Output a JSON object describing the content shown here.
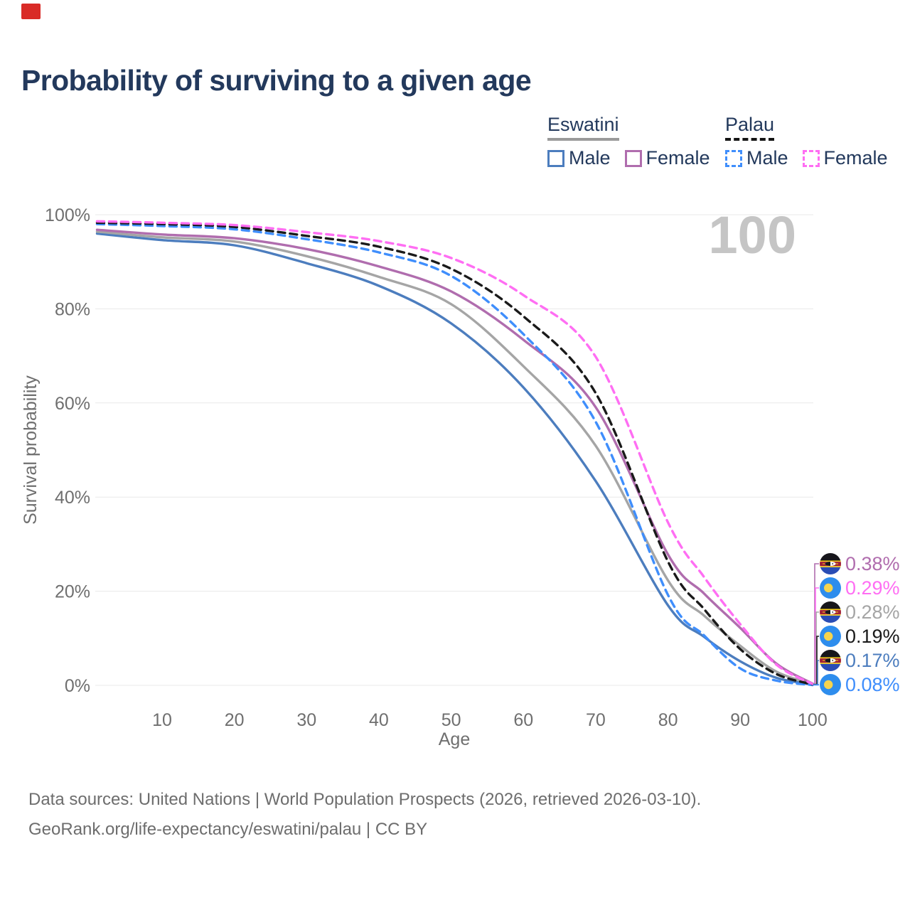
{
  "header": {
    "title": "Probability of surviving to a given age"
  },
  "watermark_age": "100",
  "legend": {
    "groups": [
      {
        "label": "Eswatini",
        "line_style": "solid",
        "underline_color": "#9a9a9a",
        "items": [
          {
            "label": "Male",
            "color": "#4c7dbe"
          },
          {
            "label": "Female",
            "color": "#b06dae"
          }
        ]
      },
      {
        "label": "Palau",
        "line_style": "dashed",
        "underline_color": "#141414",
        "items": [
          {
            "label": "Male",
            "color": "#3f8efc"
          },
          {
            "label": "Female",
            "color": "#ff6ef3"
          }
        ]
      }
    ]
  },
  "chart_data": {
    "type": "line",
    "title": "Probability of surviving to a given age",
    "xlabel": "Age",
    "ylabel": "Survival probability",
    "xlim": [
      1,
      100
    ],
    "ylim": [
      0,
      100
    ],
    "grid": "horizontal",
    "legend_position": "top-right",
    "x_ticks": [
      {
        "value": 10,
        "label": "10"
      },
      {
        "value": 20,
        "label": "20"
      },
      {
        "value": 30,
        "label": "30"
      },
      {
        "value": 40,
        "label": "40"
      },
      {
        "value": 50,
        "label": "50"
      },
      {
        "value": 60,
        "label": "60"
      },
      {
        "value": 70,
        "label": "70"
      },
      {
        "value": 80,
        "label": "80"
      },
      {
        "value": 90,
        "label": "90"
      },
      {
        "value": 100,
        "label": "100"
      }
    ],
    "y_ticks": [
      {
        "value": 0,
        "label": "0%"
      },
      {
        "value": 20,
        "label": "20%"
      },
      {
        "value": 40,
        "label": "40%"
      },
      {
        "value": 60,
        "label": "60%"
      },
      {
        "value": 80,
        "label": "80%"
      },
      {
        "value": 100,
        "label": "100%"
      }
    ],
    "x": [
      1,
      10,
      20,
      30,
      40,
      50,
      60,
      70,
      80,
      85,
      90,
      95,
      100
    ],
    "series": [
      {
        "id": "eswatini-female",
        "name": "Eswatini Female",
        "country": "Eswatini",
        "sex": "Female",
        "color": "#b06dae",
        "dash": "solid",
        "flag": "eswatini",
        "end_label": "0.38%",
        "values": [
          96.8,
          95.8,
          95.0,
          92.7,
          89.0,
          83.7,
          73.4,
          59.1,
          27.8,
          19.5,
          12.2,
          4.6,
          0.38
        ]
      },
      {
        "id": "palau-female",
        "name": "Palau Female",
        "country": "Palau",
        "sex": "Female",
        "color": "#ff6ef3",
        "dash": "dashed",
        "flag": "palau",
        "end_label": "0.29%",
        "values": [
          98.6,
          98.3,
          97.8,
          96.3,
          94.4,
          90.8,
          82.9,
          69.8,
          34.6,
          23.0,
          13.0,
          4.4,
          0.29
        ]
      },
      {
        "id": "eswatini-both",
        "name": "Eswatini Both sexes",
        "country": "Eswatini",
        "sex": "Both",
        "color": "#a5a5a5",
        "dash": "solid",
        "flag": "eswatini",
        "end_label": "0.28%",
        "values": [
          96.4,
          95.2,
          94.3,
          91.2,
          86.8,
          81.0,
          67.8,
          50.9,
          22.3,
          14.8,
          8.4,
          2.9,
          0.28
        ]
      },
      {
        "id": "palau-both",
        "name": "Palau Both sexes",
        "country": "Palau",
        "sex": "Both",
        "color": "#1a1a1a",
        "dash": "dashed",
        "flag": "palau",
        "end_label": "0.19%",
        "values": [
          98.3,
          98.0,
          97.4,
          95.5,
          93.2,
          88.5,
          78.4,
          62.1,
          26.3,
          16.2,
          7.7,
          2.4,
          0.19
        ]
      },
      {
        "id": "eswatini-male",
        "name": "Eswatini Male",
        "country": "Eswatini",
        "sex": "Male",
        "color": "#4c7dbe",
        "dash": "solid",
        "flag": "eswatini",
        "end_label": "0.17%",
        "values": [
          96.0,
          94.6,
          93.5,
          89.7,
          84.9,
          76.9,
          63.3,
          43.4,
          17.0,
          10.3,
          5.1,
          1.6,
          0.17
        ]
      },
      {
        "id": "palau-male",
        "name": "Palau Male",
        "country": "Palau",
        "sex": "Male",
        "color": "#3f8efc",
        "dash": "dashed",
        "flag": "palau",
        "end_label": "0.08%",
        "values": [
          98.0,
          97.6,
          96.9,
          94.8,
          92.0,
          87.0,
          74.6,
          56.0,
          19.2,
          10.6,
          3.6,
          1.0,
          0.08
        ]
      }
    ]
  },
  "footer": {
    "line1": "Data sources: United Nations | World Population Prospects (2026, retrieved 2026-03-10).",
    "line2": "GeoRank.org/life-expectancy/eswatini/palau | CC BY"
  }
}
